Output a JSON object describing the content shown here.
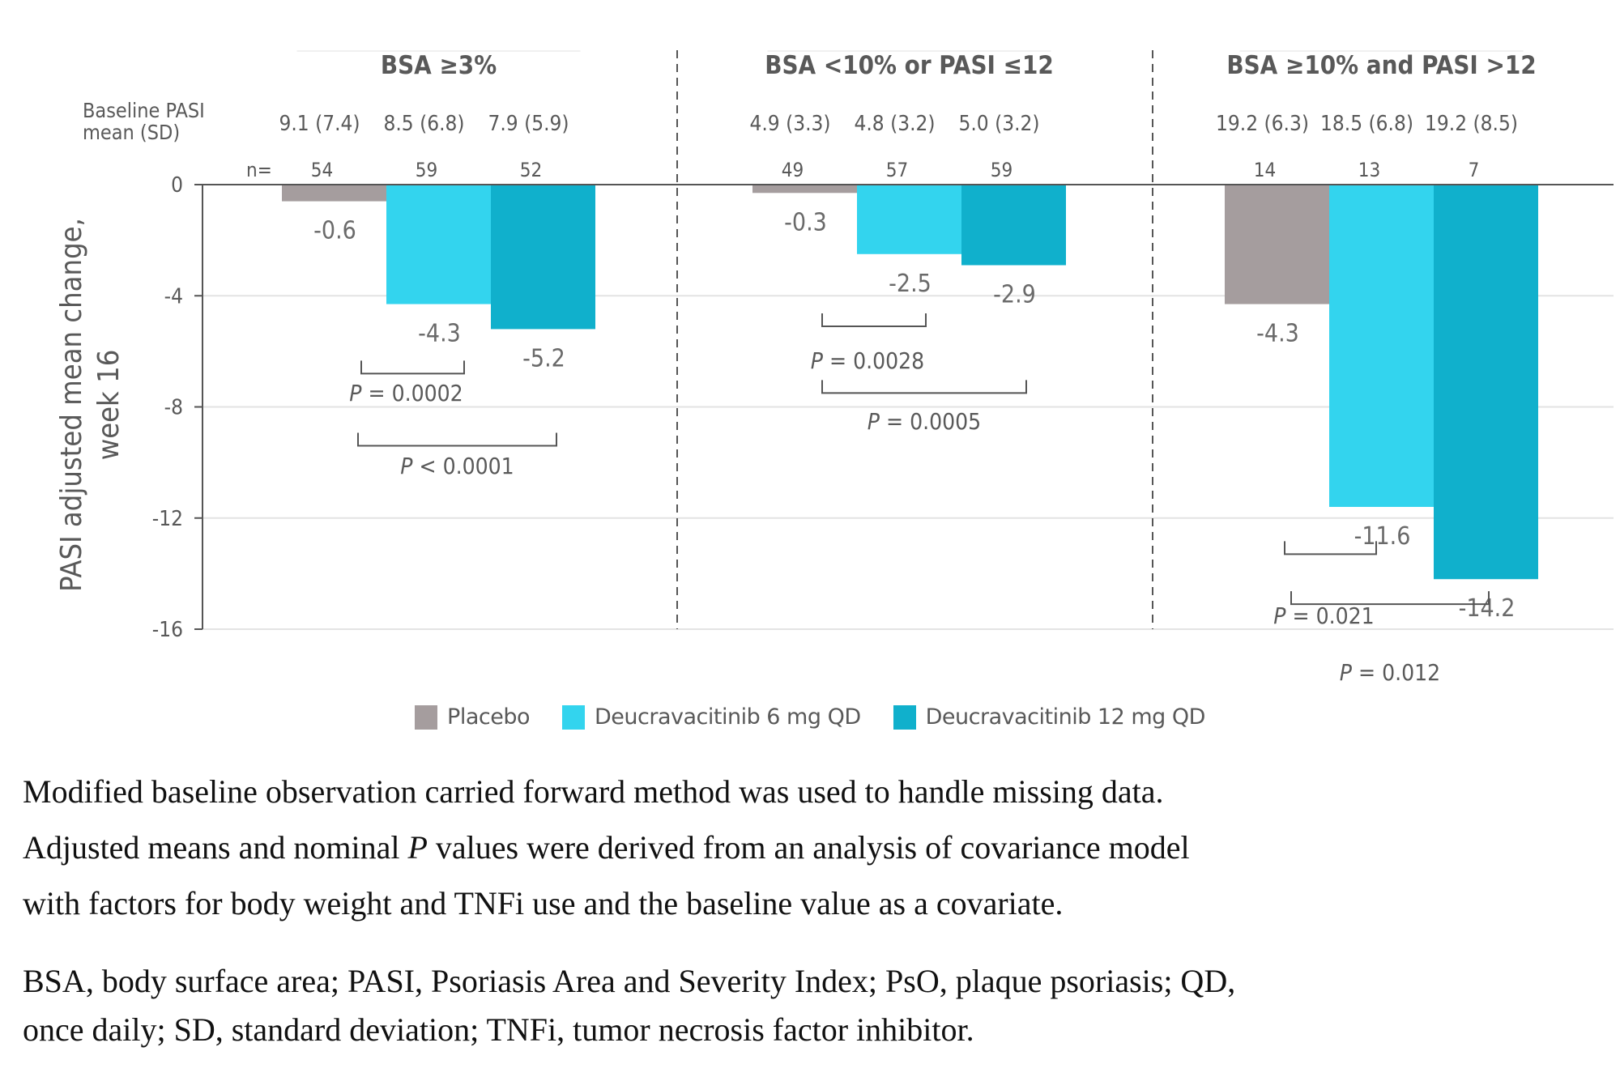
{
  "chart_data": {
    "type": "bar",
    "title": "",
    "ylabel": "PASI adjusted mean change, week 16",
    "xlabel": "",
    "ylim": [
      -16,
      0
    ],
    "yticks": [
      0,
      -4,
      -8,
      -12,
      -16
    ],
    "ytick_labels": [
      "0",
      "-4",
      "-8",
      "-12",
      "-16"
    ],
    "grid": true,
    "legend_position": "bottom",
    "baseline_label": "Baseline PASI mean (SD)",
    "baseline_label_lines": [
      "Baseline PASI",
      "mean (SD)"
    ],
    "n_label": "n=",
    "series": [
      {
        "name": "Placebo",
        "color": "#a59d9e"
      },
      {
        "name": "Deucravacitinib 6 mg QD",
        "color": "#33d4ee"
      },
      {
        "name": "Deucravacitinib 12 mg QD",
        "color": "#10b0cc"
      }
    ],
    "groups": [
      {
        "title": "BSA ≥3%",
        "baseline": [
          "9.1 (7.4)",
          "8.5 (6.8)",
          "7.9 (5.9)"
        ],
        "n": [
          "54",
          "59",
          "52"
        ],
        "values": [
          -0.6,
          -4.3,
          -5.2
        ],
        "value_labels": [
          "-0.6",
          "-4.3",
          "-5.2"
        ],
        "comparisons": [
          {
            "from": 0,
            "to": 1,
            "label_prefix": "P",
            "label_rest": " = 0.0002"
          },
          {
            "from": 0,
            "to": 2,
            "label_prefix": "P",
            "label_rest": " < 0.0001"
          }
        ]
      },
      {
        "title": "BSA <10% or PASI ≤12",
        "baseline": [
          "4.9 (3.3)",
          "4.8 (3.2)",
          "5.0 (3.2)"
        ],
        "n": [
          "49",
          "57",
          "59"
        ],
        "values": [
          -0.3,
          -2.5,
          -2.9
        ],
        "value_labels": [
          "-0.3",
          "-2.5",
          "-2.9"
        ],
        "comparisons": [
          {
            "from": 0,
            "to": 1,
            "label_prefix": "P",
            "label_rest": " = 0.0028"
          },
          {
            "from": 0,
            "to": 2,
            "label_prefix": "P",
            "label_rest": " = 0.0005"
          }
        ]
      },
      {
        "title": "BSA ≥10% and PASI >12",
        "baseline": [
          "19.2 (6.3)",
          "18.5 (6.8)",
          "19.2 (8.5)"
        ],
        "n": [
          "14",
          "13",
          "7"
        ],
        "values": [
          -4.3,
          -11.6,
          -14.2
        ],
        "value_labels": [
          "-4.3",
          "-11.6",
          "-14.2"
        ],
        "comparisons": [
          {
            "from": 0,
            "to": 1,
            "label_prefix": "P",
            "label_rest": " = 0.021"
          },
          {
            "from": 0,
            "to": 2,
            "label_prefix": "P",
            "label_rest": " = 0.012"
          }
        ]
      }
    ]
  },
  "legend": [
    {
      "label": "Placebo",
      "color": "#a59d9e"
    },
    {
      "label": "Deucravacitinib 6 mg QD",
      "color": "#33d4ee"
    },
    {
      "label": "Deucravacitinib 12 mg QD",
      "color": "#10b0cc"
    }
  ],
  "notes": {
    "line1": "Modified baseline observation carried forward method was used to handle missing data.",
    "line2_a": "Adjusted means and nominal ",
    "line2_italic": "P",
    "line2_b": " values were derived from an analysis of covariance model",
    "line3": "with factors for body weight and TNFi use and the baseline value as a covariate.",
    "abbrev1": "BSA, body surface area; PASI, Psoriasis Area and Severity Index; PsO, plaque psoriasis; QD,",
    "abbrev2": "once daily; SD, standard deviation; TNFi, tumor necrosis factor inhibitor."
  }
}
